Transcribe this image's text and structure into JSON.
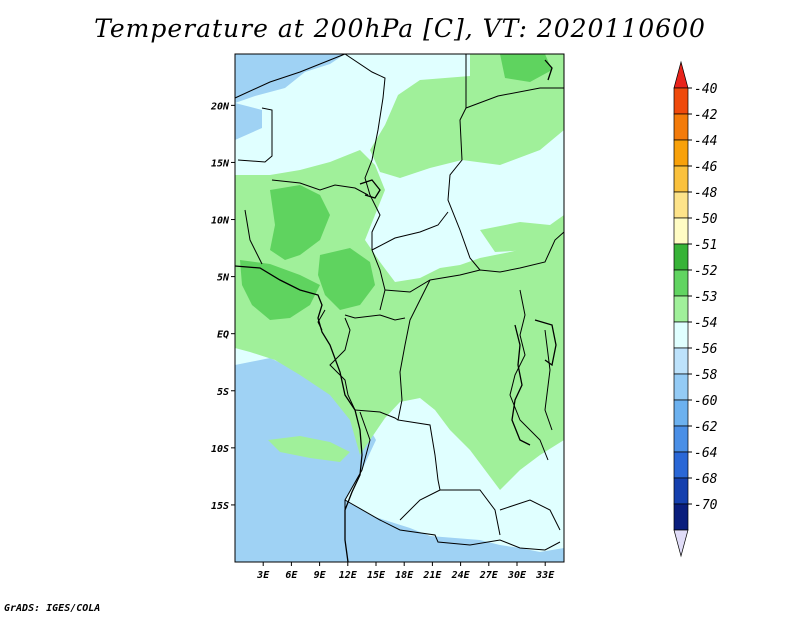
{
  "title": "Temperature at 200hPa [C], VT: 2020110600",
  "credit": "GrADS: IGES/COLA",
  "map": {
    "lon_labels": [
      "3E",
      "6E",
      "9E",
      "12E",
      "15E",
      "18E",
      "21E",
      "24E",
      "27E",
      "30E",
      "33E"
    ],
    "lat_labels": [
      "20N",
      "15N",
      "10N",
      "5N",
      "EQ",
      "5S",
      "10S",
      "15S"
    ],
    "lon_range": [
      0,
      35
    ],
    "lat_range": [
      -20,
      24.5
    ]
  },
  "colorbar": {
    "labels": [
      "-40",
      "-42",
      "-44",
      "-46",
      "-48",
      "-50",
      "-51",
      "-52",
      "-53",
      "-54",
      "-56",
      "-58",
      "-60",
      "-62",
      "-64",
      "-68",
      "-70"
    ],
    "colors": [
      "#e8231b",
      "#ef4a0c",
      "#f37b0a",
      "#f8a10a",
      "#fac13d",
      "#fde38a",
      "#fffcc4",
      "#37b337",
      "#61d461",
      "#a0f09a",
      "#e0ffff",
      "#bde2fb",
      "#94cbf5",
      "#6cb1ef",
      "#4a8fe6",
      "#2a67d6",
      "#1540ae",
      "#0a1e7d",
      "#e0dcf7"
    ]
  },
  "field_colors": {
    "lt54": "#9fd2f4",
    "m54": "#e0ffff",
    "m53": "#a0f09a",
    "m52": "#5fd35f"
  }
}
